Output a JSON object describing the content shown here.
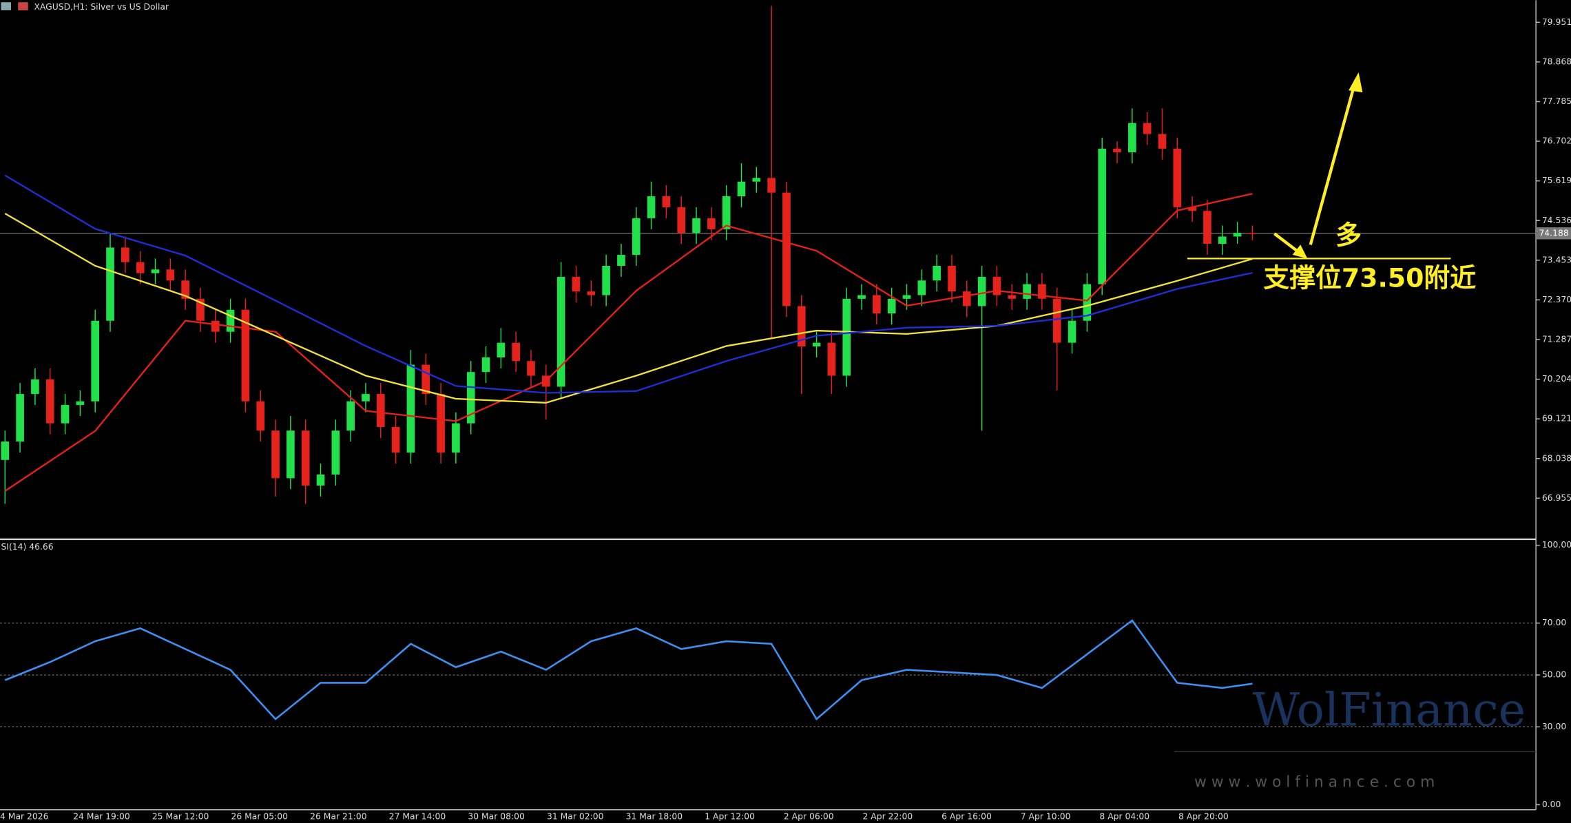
{
  "chart_data": [
    {
      "type": "candlestick",
      "title": "XAGUSD,H1:  Silver vs US Dollar",
      "x_labels": [
        "4 Mar 2026",
        "24 Mar 19:00",
        "25 Mar 12:00",
        "26 Mar 05:00",
        "26 Mar 21:00",
        "27 Mar 14:00",
        "30 Mar 08:00",
        "31 Mar 02:00",
        "31 Mar 18:00",
        "1 Apr 12:00",
        "2 Apr 06:00",
        "2 Apr 22:00",
        "6 Apr 16:00",
        "7 Apr 10:00",
        "8 Apr 04:00",
        "8 Apr 20:00"
      ],
      "open": [
        68.0,
        68.5,
        69.8,
        70.2,
        69.0,
        69.5,
        69.6,
        71.8,
        73.8,
        73.4,
        73.1,
        73.2,
        72.9,
        72.4,
        71.8,
        71.5,
        72.1,
        69.6,
        68.8,
        67.5,
        68.8,
        67.3,
        67.6,
        68.8,
        69.6,
        69.8,
        68.9,
        68.2,
        70.6,
        69.8,
        68.2,
        69.0,
        70.4,
        70.8,
        71.2,
        70.7,
        70.3,
        70.0,
        73.0,
        72.6,
        72.5,
        73.3,
        73.6,
        74.6,
        75.2,
        74.9,
        74.2,
        74.6,
        74.3,
        75.2,
        75.6,
        75.7,
        75.3,
        72.2,
        71.1,
        71.2,
        70.3,
        72.4,
        72.5,
        72.0,
        72.4,
        72.5,
        72.9,
        73.3,
        72.6,
        72.2,
        73.0,
        72.5,
        72.4,
        72.8,
        72.4,
        71.2,
        71.8,
        72.8,
        76.5,
        76.4,
        77.2,
        76.9,
        76.5,
        74.9,
        74.8,
        73.9,
        74.1,
        74.2
      ],
      "high": [
        68.8,
        70.1,
        70.5,
        70.5,
        69.8,
        69.9,
        72.1,
        74.2,
        74.1,
        73.7,
        73.5,
        73.5,
        73.2,
        72.7,
        72.1,
        72.4,
        72.4,
        69.9,
        69.1,
        69.2,
        69.1,
        67.9,
        69.1,
        69.9,
        70.1,
        70.1,
        69.2,
        71.0,
        70.9,
        70.1,
        69.3,
        70.7,
        71.1,
        71.6,
        71.5,
        71.0,
        70.6,
        73.4,
        73.3,
        72.9,
        73.6,
        73.9,
        74.9,
        75.6,
        75.5,
        75.2,
        74.9,
        74.9,
        75.5,
        76.1,
        76.0,
        80.4,
        75.6,
        72.5,
        71.5,
        71.5,
        72.7,
        72.8,
        72.8,
        72.7,
        72.8,
        73.2,
        73.6,
        73.6,
        72.9,
        73.3,
        73.3,
        72.8,
        73.1,
        73.1,
        72.7,
        72.1,
        73.1,
        76.8,
        76.7,
        77.6,
        77.5,
        77.6,
        76.8,
        75.2,
        75.1,
        74.4,
        74.5,
        74.4
      ],
      "low": [
        66.8,
        68.2,
        69.5,
        68.7,
        68.7,
        69.2,
        69.3,
        71.5,
        73.1,
        72.8,
        72.8,
        72.6,
        72.1,
        71.5,
        71.2,
        71.2,
        69.3,
        68.5,
        67.0,
        67.2,
        66.8,
        67.0,
        67.3,
        68.5,
        69.3,
        68.6,
        67.9,
        67.9,
        69.5,
        67.9,
        67.9,
        68.7,
        70.1,
        70.5,
        70.4,
        70.0,
        69.1,
        69.7,
        72.3,
        72.2,
        72.2,
        73.0,
        73.3,
        74.3,
        74.6,
        73.9,
        73.9,
        74.0,
        74.0,
        74.9,
        75.3,
        71.3,
        71.9,
        69.8,
        70.8,
        69.8,
        70.0,
        72.1,
        71.7,
        71.7,
        72.1,
        72.2,
        72.6,
        72.3,
        71.9,
        68.8,
        72.2,
        72.1,
        72.1,
        72.1,
        69.9,
        70.9,
        71.5,
        72.5,
        76.1,
        76.1,
        76.6,
        76.2,
        74.6,
        74.5,
        73.6,
        73.6,
        73.9,
        74.0
      ],
      "close": [
        68.5,
        69.8,
        70.2,
        69.0,
        69.5,
        69.6,
        71.8,
        73.8,
        73.4,
        73.1,
        73.2,
        72.9,
        72.4,
        71.8,
        71.5,
        72.1,
        69.6,
        68.8,
        67.5,
        68.8,
        67.3,
        67.6,
        68.8,
        69.6,
        69.8,
        68.9,
        68.2,
        70.6,
        69.8,
        68.2,
        69.0,
        70.4,
        70.8,
        71.2,
        70.7,
        70.3,
        70.0,
        73.0,
        72.6,
        72.5,
        73.3,
        73.6,
        74.6,
        75.2,
        74.9,
        74.2,
        74.6,
        74.3,
        75.2,
        75.6,
        75.7,
        75.3,
        72.2,
        71.1,
        71.2,
        70.3,
        72.4,
        72.5,
        72.0,
        72.4,
        72.5,
        72.9,
        73.3,
        72.6,
        72.2,
        73.0,
        72.5,
        72.4,
        72.8,
        72.4,
        71.2,
        71.8,
        72.8,
        76.5,
        76.4,
        77.2,
        76.9,
        76.5,
        74.9,
        74.8,
        73.9,
        74.1,
        74.2,
        74.19
      ],
      "up_color": "#22e04a",
      "down_color": "#e5231c",
      "ylim": [
        65.861,
        80.553
      ],
      "yticks": [
        79.951,
        78.868,
        77.785,
        76.702,
        75.619,
        74.536,
        73.453,
        {
          "value": 72.37,
          "label": "72.370"
        },
        71.287,
        70.204,
        69.121,
        68.038,
        66.955
      ],
      "current_price": {
        "value": 74.188,
        "label": "74.188"
      },
      "support_level": 73.5,
      "moving_averages": [
        {
          "color": "#e8201a",
          "x": [
            0,
            6,
            12,
            18,
            24,
            30,
            36,
            42,
            48,
            54,
            60,
            66,
            72,
            78,
            83
          ],
          "values": [
            67.15,
            68.79,
            71.8,
            71.5,
            69.34,
            69.06,
            70.16,
            72.62,
            74.4,
            73.71,
            72.21,
            72.62,
            72.35,
            74.81,
            75.27
          ]
        },
        {
          "color": "#f2e33a",
          "x": [
            0,
            6,
            12,
            18,
            24,
            30,
            36,
            42,
            48,
            54,
            60,
            66,
            72,
            78,
            83
          ],
          "values": [
            74.73,
            73.3,
            72.48,
            71.39,
            70.3,
            69.67,
            69.56,
            70.3,
            71.11,
            71.53,
            71.44,
            71.66,
            72.21,
            72.89,
            73.49
          ]
        },
        {
          "color": "#1f2fd8",
          "x": [
            0,
            6,
            12,
            18,
            24,
            30,
            36,
            42,
            48,
            54,
            60,
            66,
            72,
            78,
            83
          ],
          "values": [
            75.77,
            74.31,
            73.58,
            72.35,
            71.11,
            70.02,
            69.83,
            69.88,
            70.7,
            71.39,
            71.61,
            71.66,
            71.94,
            72.67,
            73.11
          ]
        }
      ],
      "annotations": {
        "long": "多",
        "support": "支撑位73.50附近"
      }
    },
    {
      "type": "line",
      "title": "SI(14) 46.66",
      "series": [
        {
          "color": "#3d8ff0",
          "x": [
            0,
            3,
            6,
            9,
            12,
            15,
            18,
            21,
            24,
            27,
            30,
            33,
            36,
            39,
            42,
            45,
            48,
            51,
            54,
            57,
            60,
            63,
            66,
            69,
            72,
            75,
            78,
            81,
            83
          ],
          "values": [
            48,
            55,
            63,
            68,
            60,
            52,
            33,
            47,
            47,
            62,
            53,
            59,
            52,
            63,
            68,
            60,
            63,
            62,
            33,
            48,
            52,
            51,
            50,
            45,
            58,
            71,
            47,
            45,
            46.66
          ]
        }
      ],
      "ylim": [
        0,
        100
      ],
      "yticks": [
        {
          "value": 100,
          "label": "100.00"
        },
        {
          "value": 70,
          "label": "70.00"
        },
        {
          "value": 50,
          "label": "50.00"
        },
        {
          "value": 30,
          "label": "30.00"
        },
        {
          "value": 0,
          "label": "0.00"
        }
      ],
      "grid_levels": [
        70,
        50,
        30
      ]
    }
  ],
  "watermark": {
    "logo": "WolFinance",
    "url": "w w w . w o l f i n a n c e . c o m"
  }
}
